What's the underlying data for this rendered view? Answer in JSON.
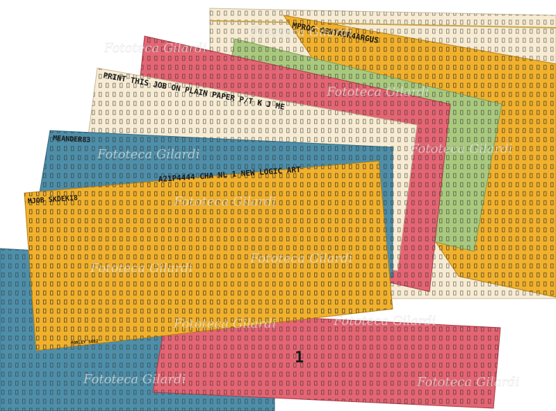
{
  "scene": "Overlapping stack of colored punched cards",
  "watermark": "Fototeca Gilardi",
  "colors": {
    "yellow": "#f1b12c",
    "green": "#a9c97e",
    "pink": "#e46573",
    "cream": "#f7ecd3",
    "teal": "#4e8ea8",
    "ink": "#1a1a1a"
  },
  "cards": {
    "cream_back": {
      "label": ""
    },
    "yellow_mid": {
      "label": "MPROG   CENTAUR4ARGUS"
    },
    "green": {
      "label": ""
    },
    "pink_top": {
      "label": ""
    },
    "cream_print": {
      "label": "PRINT THIS JOB ON PLAIN PAPER P/T K      J  ME"
    },
    "blue_mid": {
      "label": "MEANDER83"
    },
    "yellow_front": {
      "label": "A21P4444     CHA NL  1 NEW LOGIC ART",
      "label2": "MJOB     SKDEK18",
      "footer": "MORLEY 5082"
    },
    "blue_bottom": {
      "label": ""
    },
    "pink_bottom": {
      "label": "1"
    }
  }
}
